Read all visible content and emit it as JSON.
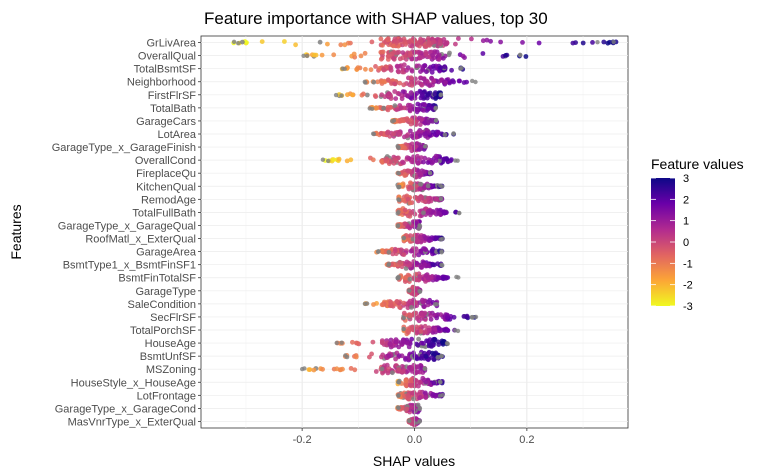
{
  "chart_data": {
    "type": "scatter",
    "subtype": "shap-beeswarm",
    "title": "Feature importance with SHAP values, top 30",
    "xlabel": "SHAP values",
    "ylabel": "Features",
    "xlim": [
      -0.38,
      0.38
    ],
    "x_ticks": [
      -0.2,
      0.0,
      0.2
    ],
    "x_tick_labels": [
      "-0.2",
      "0.0",
      "0.2"
    ],
    "grid": true,
    "features": [
      {
        "name": "GrLivArea",
        "min": -0.33,
        "max": 0.36,
        "color_lo": -3,
        "color_hi": 3
      },
      {
        "name": "OverallQual",
        "min": -0.21,
        "max": 0.2,
        "color_lo": -2.5,
        "color_hi": 3
      },
      {
        "name": "TotalBsmtSF",
        "min": -0.13,
        "max": 0.09,
        "color_lo": -2,
        "color_hi": 3
      },
      {
        "name": "Neighborhood",
        "min": -0.09,
        "max": 0.11,
        "color_lo": -1.5,
        "color_hi": 2.5
      },
      {
        "name": "FirstFlrSF",
        "min": -0.14,
        "max": 0.05,
        "color_lo": -2.5,
        "color_hi": 3
      },
      {
        "name": "TotalBath",
        "min": -0.08,
        "max": 0.04,
        "color_lo": -1.5,
        "color_hi": 2.5
      },
      {
        "name": "GarageCars",
        "min": -0.04,
        "max": 0.04,
        "color_lo": -1.5,
        "color_hi": 2
      },
      {
        "name": "LotArea",
        "min": -0.08,
        "max": 0.07,
        "color_lo": -1,
        "color_hi": 2.5
      },
      {
        "name": "GarageType_x_GarageFinish",
        "min": -0.03,
        "max": 0.02,
        "color_lo": -1,
        "color_hi": 1.5
      },
      {
        "name": "OverallCond",
        "min": -0.17,
        "max": 0.08,
        "color_lo": -3,
        "color_hi": 2.5
      },
      {
        "name": "FireplaceQu",
        "min": -0.03,
        "max": 0.03,
        "color_lo": -1,
        "color_hi": 2
      },
      {
        "name": "KitchenQual",
        "min": -0.03,
        "max": 0.05,
        "color_lo": -1.5,
        "color_hi": 2.5
      },
      {
        "name": "RemodAge",
        "min": -0.03,
        "max": 0.05,
        "color_lo": -1,
        "color_hi": 1
      },
      {
        "name": "TotalFullBath",
        "min": -0.03,
        "max": 0.08,
        "color_lo": -1,
        "color_hi": 2.5
      },
      {
        "name": "GarageType_x_GarageQual",
        "min": -0.03,
        "max": 0.01,
        "color_lo": -1,
        "color_hi": 1.5
      },
      {
        "name": "RoofMatl_x_ExterQual",
        "min": -0.02,
        "max": 0.05,
        "color_lo": -1,
        "color_hi": 2.5
      },
      {
        "name": "GarageArea",
        "min": -0.07,
        "max": 0.05,
        "color_lo": -1.5,
        "color_hi": 2.5
      },
      {
        "name": "BsmtType1_x_BsmtFinSF1",
        "min": -0.05,
        "max": 0.05,
        "color_lo": -1,
        "color_hi": 2.5
      },
      {
        "name": "BsmtFinTotalSF",
        "min": -0.03,
        "max": 0.08,
        "color_lo": -1,
        "color_hi": 2.5
      },
      {
        "name": "GarageType",
        "min": -0.01,
        "max": 0.01,
        "color_lo": -0.5,
        "color_hi": 1
      },
      {
        "name": "SaleCondition",
        "min": -0.09,
        "max": 0.04,
        "color_lo": -2,
        "color_hi": 1.5
      },
      {
        "name": "SecFlrSF",
        "min": -0.02,
        "max": 0.11,
        "color_lo": -0.5,
        "color_hi": 3
      },
      {
        "name": "TotalPorchSF",
        "min": -0.02,
        "max": 0.08,
        "color_lo": -1,
        "color_hi": 2.5
      },
      {
        "name": "HouseAge",
        "min": -0.14,
        "max": 0.06,
        "color_lo": -1.5,
        "color_hi": 3
      },
      {
        "name": "BsmtUnfSF",
        "min": -0.13,
        "max": 0.05,
        "color_lo": -1.5,
        "color_hi": 3
      },
      {
        "name": "MSZoning",
        "min": -0.21,
        "max": 0.02,
        "color_lo": -2,
        "color_hi": 1
      },
      {
        "name": "HouseStyle_x_HouseAge",
        "min": -0.03,
        "max": 0.05,
        "color_lo": -1.5,
        "color_hi": 2.5
      },
      {
        "name": "LotFrontage",
        "min": -0.03,
        "max": 0.05,
        "color_lo": -1,
        "color_hi": 2
      },
      {
        "name": "GarageType_x_GarageCond",
        "min": -0.03,
        "max": 0.01,
        "color_lo": -1,
        "color_hi": 1.5
      },
      {
        "name": "MasVnrType_x_ExterQual",
        "min": -0.01,
        "max": 0.01,
        "color_lo": -0.5,
        "color_hi": 1.5
      }
    ],
    "legend": {
      "title": "Feature values",
      "position": "right",
      "ticks": [
        3,
        2,
        1,
        0,
        -1,
        -2,
        -3
      ],
      "tick_labels": [
        "3",
        "2",
        "1",
        "0",
        "-1",
        "-2",
        "-3"
      ],
      "colormap": [
        "#f0f921",
        "#fca636",
        "#e16462",
        "#b12a90",
        "#6a00a8",
        "#0d0887"
      ]
    },
    "missing_color": "#808080"
  }
}
